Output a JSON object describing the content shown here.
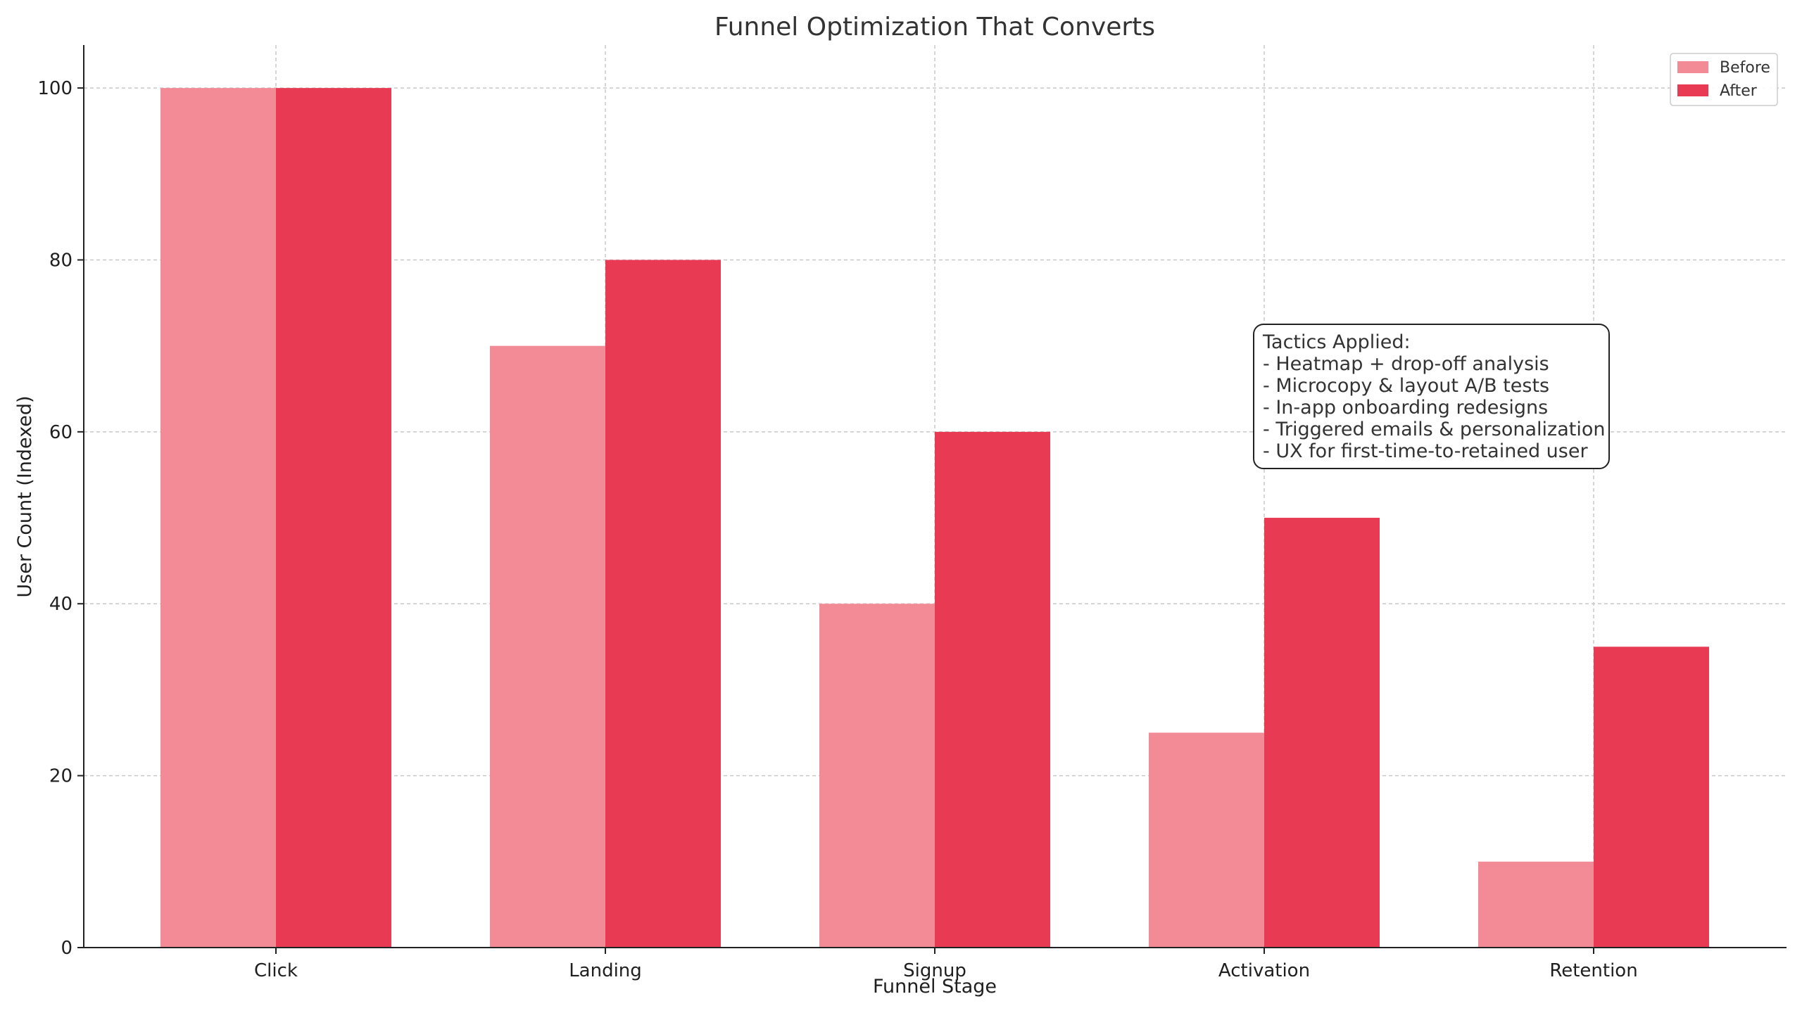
{
  "chart_data": {
    "type": "bar",
    "title": "Funnel Optimization That Converts",
    "xlabel": "Funnel Stage",
    "ylabel": "User Count (Indexed)",
    "categories": [
      "Click",
      "Landing",
      "Signup",
      "Activation",
      "Retention"
    ],
    "series": [
      {
        "name": "Before",
        "values": [
          100,
          70,
          40,
          25,
          10
        ],
        "color": "#f28b96"
      },
      {
        "name": "After",
        "values": [
          100,
          80,
          60,
          50,
          35
        ],
        "color": "#e83a52"
      }
    ],
    "ylim": [
      0,
      105
    ],
    "yticks": [
      0,
      20,
      40,
      60,
      80,
      100
    ],
    "grid": true,
    "legend_position": "top-right",
    "annotation": {
      "lines": [
        "Tactics Applied:",
        "- Heatmap + drop-off analysis",
        "- Microcopy & layout A/B tests",
        "- In-app onboarding redesigns",
        "- Triggered emails & personalization",
        "- UX for first-time-to-retained user"
      ]
    }
  }
}
